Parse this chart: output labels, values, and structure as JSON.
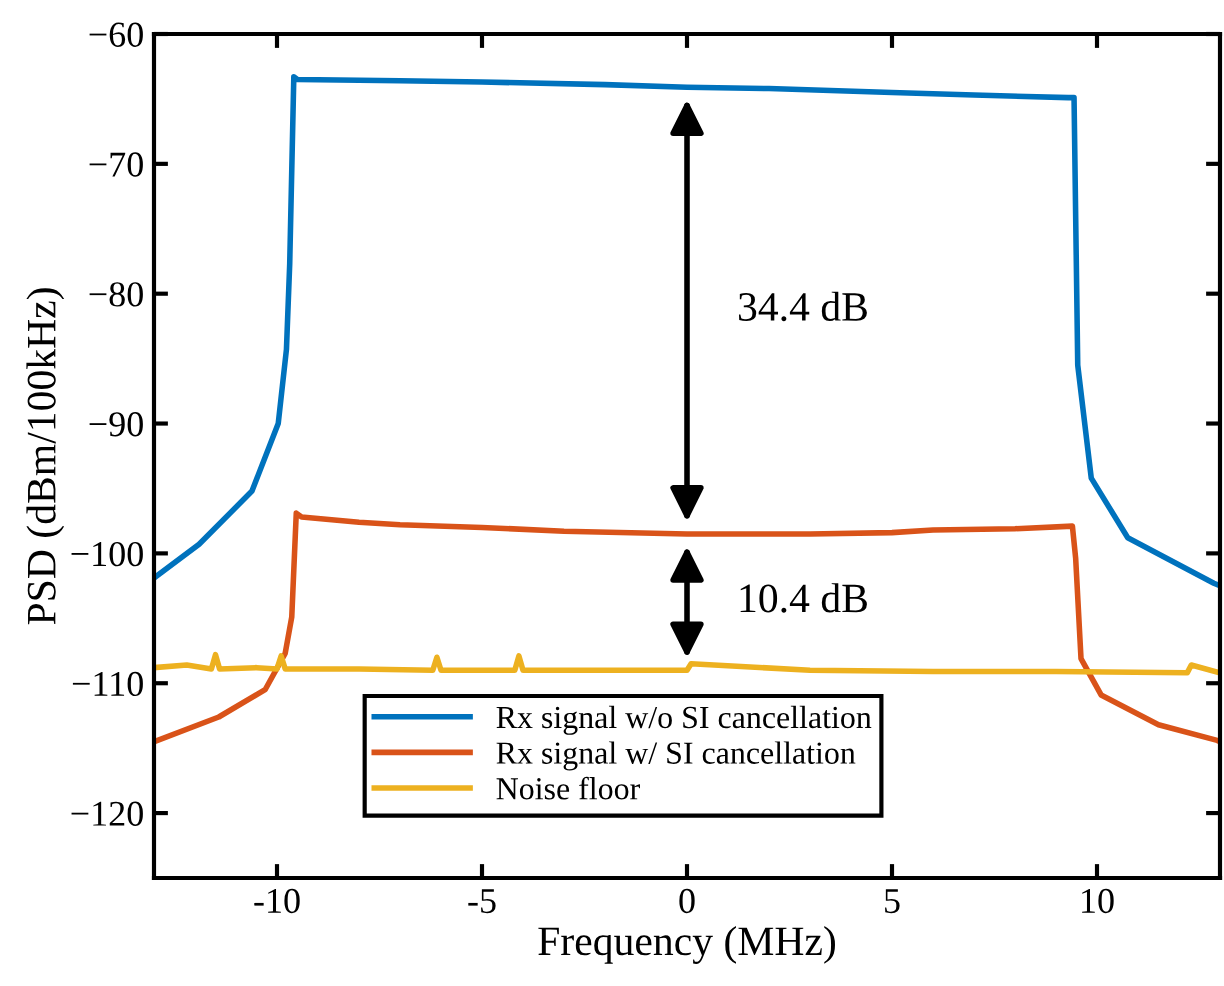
{
  "chart_data": {
    "type": "line",
    "xlabel": "Frequency (MHz)",
    "ylabel": "PSD (dBm/100kHz)",
    "xlim": [
      -13,
      13
    ],
    "ylim": [
      -125,
      -60
    ],
    "xticks": [
      -10,
      -5,
      0,
      5,
      10
    ],
    "yticks": [
      -120,
      -110,
      -100,
      -90,
      -80,
      -70,
      -60
    ],
    "grid": false,
    "legend": "bottom",
    "marker": "none",
    "line_style": "solid",
    "series": [
      {
        "name": "Rx signal w/o SI cancellation",
        "color": "#0072bd",
        "x": [
          -13,
          -11.9,
          -10.61,
          -9.97,
          -9.77,
          -9.69,
          -9.59,
          -9.5,
          -7,
          -5,
          -2,
          0,
          2,
          5,
          7,
          9.3,
          9.44,
          9.53,
          9.86,
          10.75,
          12.85,
          13
        ],
        "values": [
          -101.9,
          -99.3,
          -95.2,
          -90.0,
          -84.3,
          -77.7,
          -63.3,
          -63.5,
          -63.6,
          -63.7,
          -63.9,
          -64.1,
          -64.2,
          -64.5,
          -64.7,
          -64.9,
          -64.9,
          -85.5,
          -94.2,
          -98.8,
          -102.3,
          -102.5
        ]
      },
      {
        "name": "Rx signal w/ SI cancellation",
        "color": "#d95319",
        "x": [
          -13,
          -11.42,
          -10.29,
          -9.8,
          -9.64,
          -9.53,
          -9.4,
          -8,
          -7,
          -5,
          -3,
          0,
          3,
          5,
          6,
          8,
          9.4,
          9.48,
          9.61,
          10.1,
          11.5,
          12.93,
          13
        ],
        "values": [
          -114.5,
          -112.6,
          -110.5,
          -107.7,
          -104.9,
          -96.9,
          -97.2,
          -97.6,
          -97.8,
          -98.0,
          -98.3,
          -98.5,
          -98.5,
          -98.4,
          -98.2,
          -98.1,
          -97.9,
          -100.4,
          -108.1,
          -110.9,
          -113.2,
          -114.4,
          -114.5
        ]
      },
      {
        "name": "Noise floor",
        "color": "#edb120",
        "x": [
          -13,
          -12.2,
          -11.6,
          -11.5,
          -11.4,
          -10.5,
          -10.0,
          -9.9,
          -9.8,
          -8,
          -6.2,
          -6.1,
          -6.0,
          -4.2,
          -4.1,
          -4.0,
          -2.5,
          0,
          0.1,
          3,
          6,
          9,
          12.2,
          12.3,
          13
        ],
        "values": [
          -108.8,
          -108.6,
          -108.9,
          -107.8,
          -108.9,
          -108.8,
          -108.9,
          -107.9,
          -108.9,
          -108.9,
          -109.0,
          -108.0,
          -109.0,
          -109.0,
          -107.9,
          -109.0,
          -109.0,
          -109.0,
          -108.5,
          -109.0,
          -109.1,
          -109.1,
          -109.2,
          -108.6,
          -109.2
        ]
      }
    ],
    "annotations": [
      "34.4 dB",
      "10.4 dB"
    ]
  }
}
